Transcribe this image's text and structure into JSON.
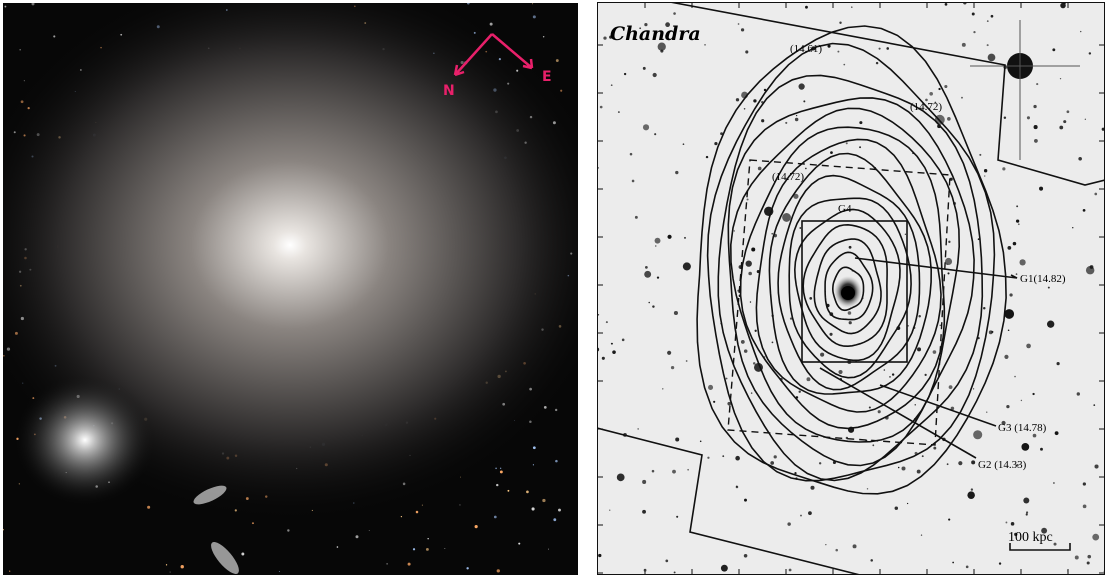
{
  "left_panel": {
    "compass": {
      "north": "N",
      "east": "E"
    }
  },
  "right_panel": {
    "title": "Chandra",
    "contour_labels": [
      "(14.61)",
      "(14.72)",
      "(14.72)"
    ],
    "galaxy_labels": [
      "G4",
      "G1(14.82)",
      "G3 (14.78)",
      "G2 (14.33)"
    ],
    "scale_bar": "100 kpc"
  }
}
